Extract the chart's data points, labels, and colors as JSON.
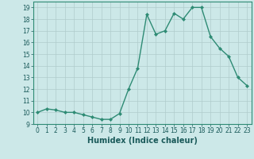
{
  "x": [
    0,
    1,
    2,
    3,
    4,
    5,
    6,
    7,
    8,
    9,
    10,
    11,
    12,
    13,
    14,
    15,
    16,
    17,
    18,
    19,
    20,
    21,
    22,
    23
  ],
  "y": [
    10.0,
    10.3,
    10.2,
    10.0,
    10.0,
    9.8,
    9.6,
    9.4,
    9.4,
    9.9,
    12.0,
    13.8,
    18.4,
    16.7,
    17.0,
    18.5,
    18.0,
    19.0,
    19.0,
    16.5,
    15.5,
    14.8,
    13.0,
    12.3
  ],
  "line_color": "#2e8b74",
  "marker": "D",
  "marker_size": 2,
  "bg_color": "#cce8e8",
  "grid_color": "#b0cccc",
  "xlabel": "Humidex (Indice chaleur)",
  "xlabel_fontsize": 7,
  "xlim": [
    -0.5,
    23.5
  ],
  "ylim": [
    9.0,
    19.5
  ],
  "yticks": [
    9,
    10,
    11,
    12,
    13,
    14,
    15,
    16,
    17,
    18,
    19
  ],
  "xticks": [
    0,
    1,
    2,
    3,
    4,
    5,
    6,
    7,
    8,
    9,
    10,
    11,
    12,
    13,
    14,
    15,
    16,
    17,
    18,
    19,
    20,
    21,
    22,
    23
  ],
  "tick_fontsize": 5.5,
  "linewidth": 1.0,
  "tick_color": "#1a5a5a",
  "spine_color": "#2e8b74"
}
